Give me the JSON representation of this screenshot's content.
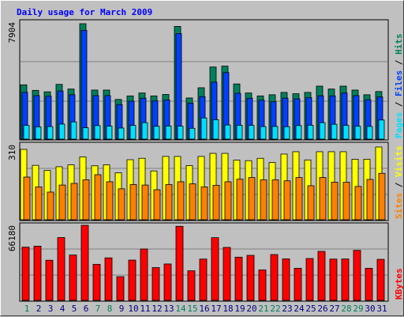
{
  "title": "Daily usage for March 2009",
  "colors": {
    "hits": "#00805c",
    "files": "#0040ff",
    "pages": "#00e0ff",
    "visits": "#ffff00",
    "sites": "#ff8000",
    "kbytes": "#ff0000",
    "title": "#0000ff",
    "frame": "#c0c0c0",
    "panel": "#c0c0c0",
    "weekend_label": "#00805c",
    "weekday_label": "#000080"
  },
  "chart_data": [
    {
      "type": "bar",
      "panel": "hits-files-pages",
      "categories": [
        "1",
        "2",
        "3",
        "4",
        "5",
        "6",
        "7",
        "8",
        "9",
        "10",
        "11",
        "12",
        "13",
        "14",
        "15",
        "16",
        "17",
        "18",
        "19",
        "20",
        "21",
        "22",
        "23",
        "24",
        "25",
        "26",
        "27",
        "28",
        "29",
        "30",
        "31"
      ],
      "weekend_days": [
        "1",
        "7",
        "8",
        "14",
        "15",
        "21",
        "22",
        "28",
        "29"
      ],
      "max_label": "7904",
      "ylim": [
        0,
        7904
      ],
      "series": [
        {
          "name": "Hits",
          "values": [
            3720,
            3340,
            3240,
            3750,
            3430,
            7904,
            3360,
            3360,
            2720,
            2960,
            3160,
            2960,
            3060,
            7720,
            2820,
            3520,
            4940,
            5000,
            3780,
            3160,
            2960,
            3040,
            3200,
            3110,
            3200,
            3630,
            3430,
            3630,
            3360,
            3040,
            3260
          ]
        },
        {
          "name": "Files",
          "values": [
            3200,
            2980,
            2940,
            3300,
            3040,
            7450,
            2980,
            2980,
            2370,
            2600,
            2800,
            2620,
            2680,
            7230,
            2470,
            2910,
            3900,
            4560,
            3140,
            2800,
            2670,
            2560,
            2810,
            2760,
            2850,
            2970,
            2960,
            3160,
            2980,
            2700,
            2890
          ]
        },
        {
          "name": "Pages",
          "values": [
            940,
            840,
            860,
            1030,
            1180,
            780,
            930,
            890,
            760,
            940,
            1130,
            880,
            900,
            890,
            740,
            1450,
            1330,
            970,
            950,
            940,
            860,
            870,
            850,
            930,
            950,
            1130,
            1020,
            940,
            880,
            870,
            1310
          ]
        }
      ]
    },
    {
      "type": "bar",
      "panel": "visits-sites",
      "categories": [
        "1",
        "2",
        "3",
        "4",
        "5",
        "6",
        "7",
        "8",
        "9",
        "10",
        "11",
        "12",
        "13",
        "14",
        "15",
        "16",
        "17",
        "18",
        "19",
        "20",
        "21",
        "22",
        "23",
        "24",
        "25",
        "26",
        "27",
        "28",
        "29",
        "30",
        "31"
      ],
      "max_label": "310",
      "ylim": [
        0,
        310
      ],
      "series": [
        {
          "name": "Visits",
          "values": [
            300,
            232,
            210,
            226,
            234,
            268,
            230,
            234,
            200,
            256,
            262,
            208,
            270,
            270,
            231,
            270,
            283,
            283,
            254,
            252,
            262,
            244,
            280,
            290,
            255,
            290,
            290,
            290,
            258,
            258,
            310
          ]
        },
        {
          "name": "Sites",
          "values": [
            182,
            140,
            118,
            148,
            155,
            170,
            192,
            162,
            132,
            150,
            148,
            128,
            150,
            162,
            153,
            140,
            147,
            162,
            173,
            180,
            170,
            170,
            166,
            180,
            145,
            180,
            160,
            160,
            142,
            172,
            198
          ]
        }
      ]
    },
    {
      "type": "bar",
      "panel": "kbytes",
      "categories": [
        "1",
        "2",
        "3",
        "4",
        "5",
        "6",
        "7",
        "8",
        "9",
        "10",
        "11",
        "12",
        "13",
        "14",
        "15",
        "16",
        "17",
        "18",
        "19",
        "20",
        "21",
        "22",
        "23",
        "24",
        "25",
        "26",
        "27",
        "28",
        "29",
        "30",
        "31"
      ],
      "max_label": "66180",
      "ylim": [
        0,
        66180
      ],
      "series": [
        {
          "name": "KBytes",
          "values": [
            46900,
            47800,
            35400,
            55400,
            40000,
            66180,
            31800,
            37500,
            20900,
            35500,
            45300,
            28900,
            32100,
            65300,
            26100,
            36400,
            55300,
            46700,
            38100,
            39700,
            26900,
            40400,
            36600,
            28300,
            36900,
            43200,
            36400,
            36500,
            44100,
            28300,
            36200
          ]
        }
      ]
    }
  ],
  "legend": {
    "pages": "Pages",
    "files": "Files",
    "hits": "Hits",
    "sites": "Sites",
    "visits": "Visits",
    "kbytes": "KBytes",
    "sep": "/"
  }
}
